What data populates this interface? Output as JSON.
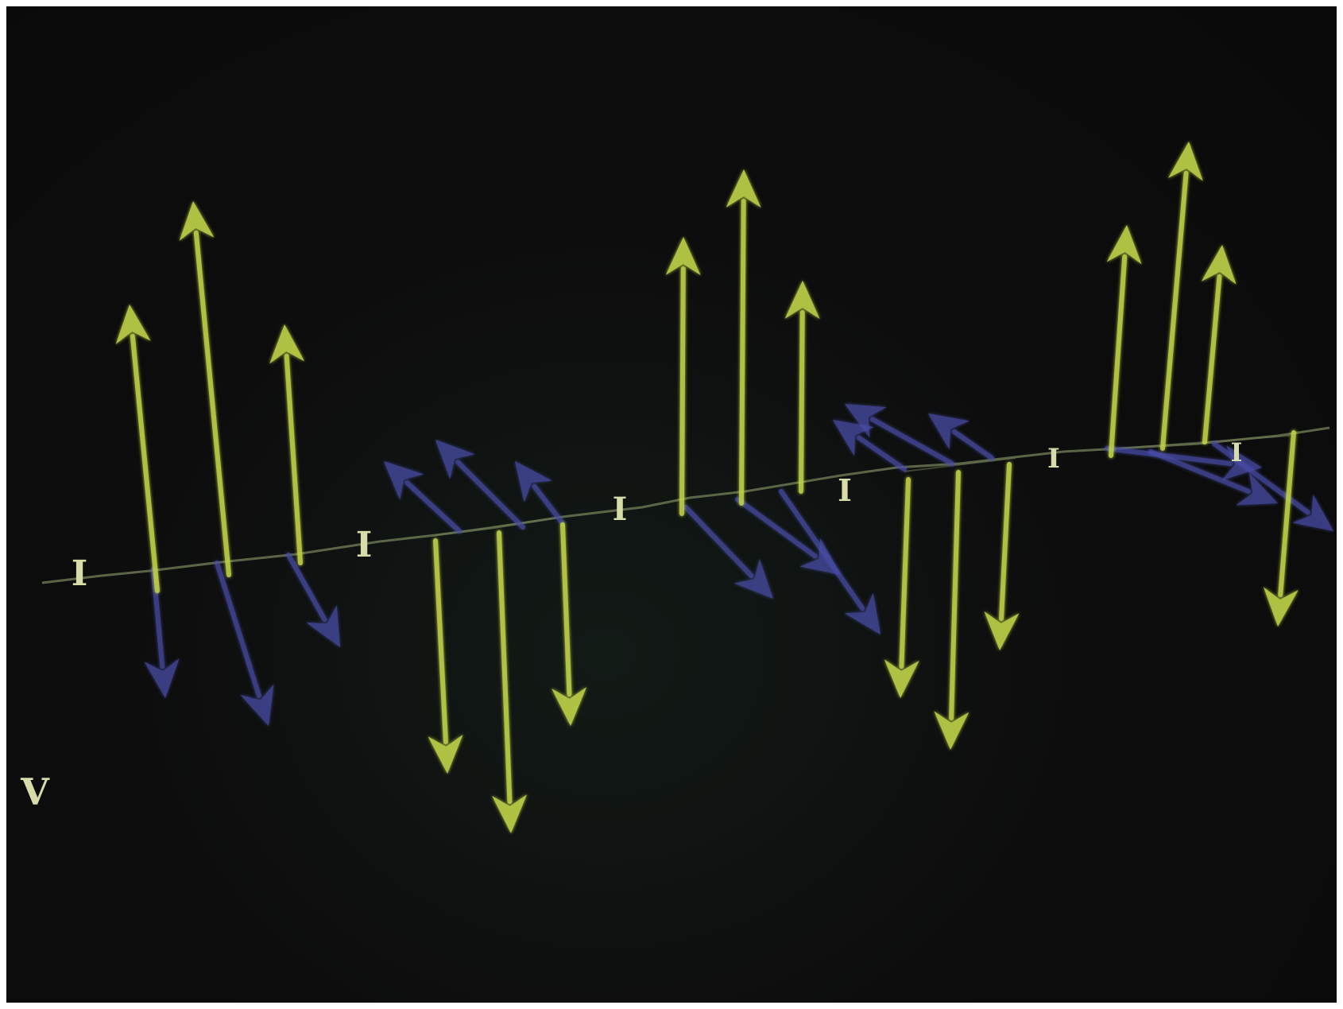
{
  "labels": {
    "current_symbol": "I",
    "voltage_symbol": "V"
  },
  "colors": {
    "background": "#0c0c0c",
    "electric_field_arrow": "#c2d44a",
    "magnetic_field_arrow": "#4a4ea8",
    "propagation_line": "#6e7a55",
    "label": "#d8dca8"
  }
}
